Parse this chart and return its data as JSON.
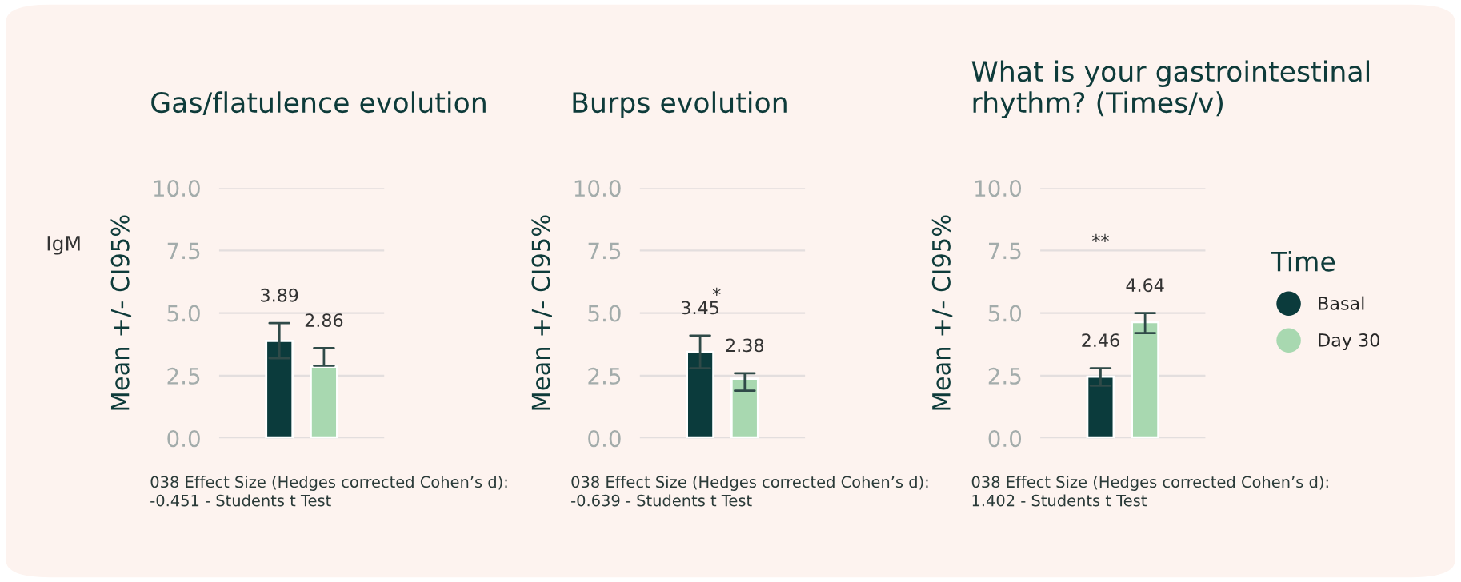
{
  "chart_data": [
    {
      "type": "bar",
      "title": "Gas/flatulence evolution",
      "subtitle": "IgM",
      "ylabel": "Mean +/- CI95%",
      "categories": [
        null
      ],
      "series": [
        {
          "color": "#0b3b3c",
          "values": [
            3.89
          ],
          "errors": [
            [
              3.2,
              4.6
            ]
          ],
          "value_labels": [
            "3.89"
          ]
        },
        {
          "color": "#a8d8b0",
          "values": [
            2.86
          ],
          "errors": [
            [
              2.9,
              3.6
            ]
          ],
          "value_labels": [
            "2.86"
          ]
        }
      ],
      "ylim": [
        0,
        10
      ],
      "yticks": [
        {
          "value": 0,
          "label": "0.0"
        },
        {
          "value": 2.5,
          "label": "2.5"
        },
        {
          "value": 5,
          "label": "5.0"
        },
        {
          "value": 7.5,
          "label": "7.5"
        },
        {
          "value": 10,
          "label": "10.0"
        }
      ],
      "grid": "y",
      "annotations": [
        "038 Effect Size (Hedges corrected Cohen’s d):\n-0.451 - Students t Test"
      ]
    },
    {
      "type": "bar",
      "title": "Burps evolution",
      "ylabel": "Mean +/- CI95%",
      "categories": [
        null
      ],
      "series": [
        {
          "color": "#0b3b3c",
          "values": [
            3.45
          ],
          "errors": [
            [
              2.8,
              4.1
            ]
          ],
          "value_labels": [
            "3.45"
          ]
        },
        {
          "color": "#a8d8b0",
          "values": [
            2.38
          ],
          "errors": [
            [
              1.9,
              2.6
            ]
          ],
          "value_labels": [
            "2.38"
          ]
        }
      ],
      "ylim": [
        0,
        10
      ],
      "yticks": [
        {
          "value": 0,
          "label": "0.0"
        },
        {
          "value": 2.5,
          "label": "2.5"
        },
        {
          "value": 5,
          "label": "5.0"
        },
        {
          "value": 7.5,
          "label": "7.5"
        },
        {
          "value": 10,
          "label": "10.0"
        }
      ],
      "grid": "y",
      "annotations": [
        "*",
        "038 Effect Size (Hedges corrected Cohen’s d):\n-0.639 - Students t Test"
      ]
    },
    {
      "type": "bar",
      "title": "What is your gastrointestinal\nrhythm? (Times/v)",
      "ylabel": "Mean +/- CI95%",
      "categories": [
        null
      ],
      "legend_title": "Time",
      "series": [
        {
          "name": "Basal",
          "color": "#0b3b3c",
          "values": [
            2.46
          ],
          "errors": [
            [
              2.1,
              2.8
            ]
          ],
          "value_labels": [
            "2.46"
          ]
        },
        {
          "name": "Day 30",
          "color": "#a8d8b0",
          "values": [
            4.64
          ],
          "errors": [
            [
              4.2,
              5.0
            ]
          ],
          "value_labels": [
            "4.64"
          ]
        }
      ],
      "ylim": [
        0,
        10
      ],
      "yticks": [
        {
          "value": 0,
          "label": "0.0"
        },
        {
          "value": 2.5,
          "label": "2.5"
        },
        {
          "value": 5,
          "label": "5.0"
        },
        {
          "value": 7.5,
          "label": "7.5"
        },
        {
          "value": 10,
          "label": "10.0"
        }
      ],
      "grid": "y",
      "legend": "right",
      "annotations": [
        "**",
        "038 Effect Size (Hedges corrected Cohen’s d):\n1.402 - Students t Test"
      ]
    }
  ]
}
